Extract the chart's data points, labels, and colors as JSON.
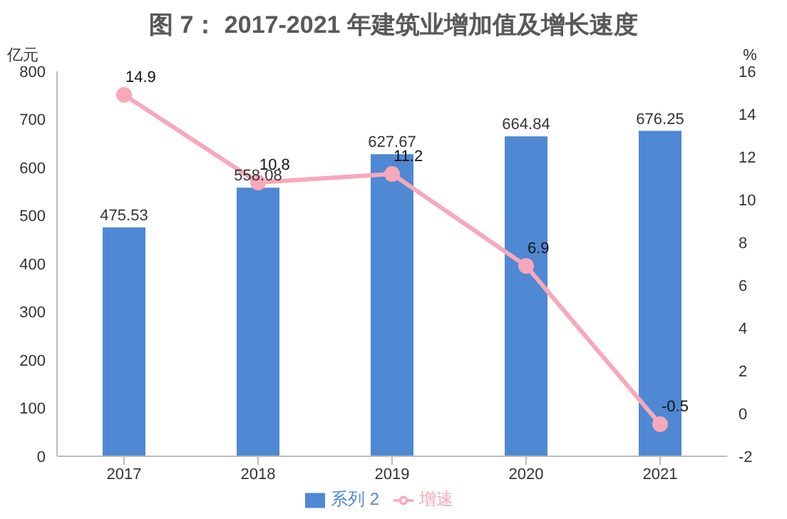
{
  "chart_data": {
    "type": "bar",
    "title": "图 7： 2017-2021 年建筑业增加值及增长速度",
    "ylabel": "亿元",
    "y2label": "%",
    "categories": [
      "2017",
      "2018",
      "2019",
      "2020",
      "2021"
    ],
    "series": [
      {
        "name": "系列  2",
        "color": "#4f88d3",
        "values": [
          475.53,
          558.08,
          627.67,
          664.84,
          676.25
        ]
      },
      {
        "name": "增速",
        "type": "line",
        "axis": "y2",
        "color": "#f7a8ba",
        "values": [
          14.9,
          10.8,
          11.2,
          6.9,
          -0.5
        ]
      }
    ],
    "ylim": [
      0,
      800
    ],
    "yticks": [
      0,
      100,
      200,
      300,
      400,
      500,
      600,
      700,
      800
    ],
    "y2lim": [
      -2,
      16
    ],
    "y2ticks": [
      -2,
      0,
      2,
      4,
      6,
      8,
      10,
      12,
      14,
      16
    ],
    "data_labels": true,
    "marker": "circle",
    "legend": "bottom",
    "grid": false
  }
}
